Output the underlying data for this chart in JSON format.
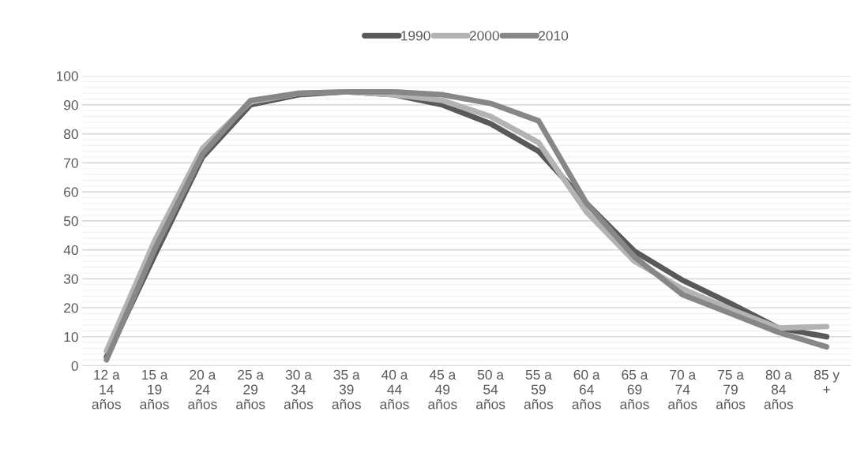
{
  "chart_data": {
    "type": "line",
    "categories": [
      "12 a 14 años",
      "15 a 19 años",
      "20 a 24 años",
      "25 a 29 años",
      "30 a 34 años",
      "35 a 39 años",
      "40 a 44 años",
      "45 a 49 años",
      "50 a 54 años",
      "55 a 59 años",
      "60 a 64 años",
      "65 a 69 años",
      "70 a 74 años",
      "75 a 79 años",
      "80 a 84 años",
      "85 y +"
    ],
    "series": [
      {
        "name": "1990",
        "color": "#595959",
        "values": [
          3,
          38,
          72,
          90,
          93.5,
          94.5,
          93.5,
          90,
          83.5,
          74,
          56,
          39.5,
          29.5,
          21.5,
          13,
          10
        ]
      },
      {
        "name": "2000",
        "color": "#b3b3b3",
        "values": [
          5,
          43,
          75,
          91,
          94,
          94.5,
          93.5,
          91.5,
          86,
          77,
          53,
          36,
          26.5,
          19.5,
          13,
          13.5
        ]
      },
      {
        "name": "2010",
        "color": "#878787",
        "values": [
          2,
          40,
          73,
          91.5,
          94,
          94.5,
          94.5,
          93.5,
          90.5,
          84.5,
          56,
          37.5,
          24.5,
          18,
          11.5,
          6.5
        ]
      }
    ],
    "ylim": [
      0,
      100
    ],
    "yticks": [
      0,
      {
        "value": 2,
        "label": null
      },
      {
        "value": 4,
        "label": null
      },
      {
        "value": 6,
        "label": null
      },
      {
        "value": 8,
        "label": null
      },
      10,
      {
        "value": 12,
        "label": null
      },
      {
        "value": 14,
        "label": null
      },
      {
        "value": 16,
        "label": null
      },
      {
        "value": 18,
        "label": null
      },
      20,
      {
        "value": 22,
        "label": null
      },
      {
        "value": 24,
        "label": null
      },
      {
        "value": 26,
        "label": null
      },
      {
        "value": 28,
        "label": null
      },
      30,
      {
        "value": 32,
        "label": null
      },
      {
        "value": 34,
        "label": null
      },
      {
        "value": 36,
        "label": null
      },
      {
        "value": 38,
        "label": null
      },
      40,
      {
        "value": 42,
        "label": null
      },
      {
        "value": 44,
        "label": null
      },
      {
        "value": 46,
        "label": null
      },
      {
        "value": 48,
        "label": null
      },
      50,
      {
        "value": 52,
        "label": null
      },
      {
        "value": 54,
        "label": null
      },
      {
        "value": 56,
        "label": null
      },
      {
        "value": 58,
        "label": null
      },
      60,
      {
        "value": 62,
        "label": null
      },
      {
        "value": 64,
        "label": null
      },
      {
        "value": 66,
        "label": null
      },
      {
        "value": 68,
        "label": null
      },
      70,
      {
        "value": 72,
        "label": null
      },
      {
        "value": 74,
        "label": null
      },
      {
        "value": 76,
        "label": null
      },
      {
        "value": 78,
        "label": null
      },
      80,
      {
        "value": 82,
        "label": null
      },
      {
        "value": 84,
        "label": null
      },
      {
        "value": 86,
        "label": null
      },
      {
        "value": 88,
        "label": null
      },
      90,
      {
        "value": 92,
        "label": null
      },
      {
        "value": 94,
        "label": null
      },
      {
        "value": 96,
        "label": null
      },
      {
        "value": 98,
        "label": null
      },
      100
    ],
    "grid": "y",
    "legend": "top",
    "marker": "none",
    "line_style": "solid"
  }
}
